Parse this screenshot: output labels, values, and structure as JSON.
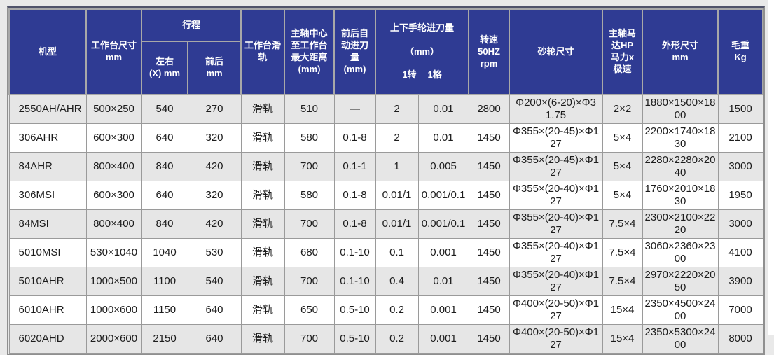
{
  "page": {
    "background": "#e9e9e9",
    "right_strip": "#ffffff"
  },
  "table": {
    "colors": {
      "header_bg": "#2f3b93",
      "header_text": "#ffffff",
      "row_odd_bg": "#e6e6e6",
      "row_even_bg": "#ffffff",
      "grid_line": "#9a9a9a"
    },
    "header": {
      "model": "机型",
      "table_size": "工作台尺寸\nmm",
      "stroke_group": "行程",
      "stroke_lr": "左右\n(X) mm",
      "stroke_fb": "前后\nmm",
      "slide": "工作台滑\n轨",
      "spindle_distance": "主轴中心\n至工作台\n最大距离\n(mm)",
      "auto_feed": "前后自\n动进刀\n量\n(mm)",
      "handwheel_title": "上下手轮进刀量",
      "handwheel_unit": "（mm）",
      "handwheel_rev": "1转",
      "handwheel_grad": "1格",
      "speed": "转速\n50HZ\nrpm",
      "wheel_size": "砂轮尺寸",
      "spindle_motor": "主轴马\n达HP\n马力x\n极速",
      "dimensions": "外形尺寸\nmm",
      "weight": "毛重\nKg"
    },
    "rows": [
      {
        "model": "2550AH/AHR",
        "table_size": "500×250",
        "stroke_lr": "540",
        "stroke_fb": "270",
        "slide": "滑轨",
        "spindle_distance": "510",
        "auto_feed": "—",
        "handwheel_rev": "2",
        "handwheel_grad": "0.01",
        "speed": "2800",
        "wheel_size": "Φ200×(6-20)×Φ31.75",
        "spindle_motor": "2×2",
        "dimensions": "1880×1500×1800",
        "weight": "1500"
      },
      {
        "model": "306AHR",
        "table_size": "600×300",
        "stroke_lr": "640",
        "stroke_fb": "320",
        "slide": "滑轨",
        "spindle_distance": "580",
        "auto_feed": "0.1-8",
        "handwheel_rev": "2",
        "handwheel_grad": "0.01",
        "speed": "1450",
        "wheel_size": "Φ355×(20-45)×Φ127",
        "spindle_motor": "5×4",
        "dimensions": "2200×1740×1830",
        "weight": "2100"
      },
      {
        "model": "84AHR",
        "table_size": "800×400",
        "stroke_lr": "840",
        "stroke_fb": "420",
        "slide": "滑轨",
        "spindle_distance": "700",
        "auto_feed": "0.1-1",
        "handwheel_rev": "1",
        "handwheel_grad": "0.005",
        "speed": "1450",
        "wheel_size": "Φ355×(20-45)×Φ127",
        "spindle_motor": "5×4",
        "dimensions": "2280×2280×2040",
        "weight": "3000"
      },
      {
        "model": "306MSI",
        "table_size": "600×300",
        "stroke_lr": "640",
        "stroke_fb": "320",
        "slide": "滑轨",
        "spindle_distance": "580",
        "auto_feed": "0.1-8",
        "handwheel_rev": "0.01/1",
        "handwheel_grad": "0.001/0.1",
        "speed": "1450",
        "wheel_size": "Φ355×(20-40)×Φ127",
        "spindle_motor": "5×4",
        "dimensions": "1760×2010×1830",
        "weight": "1950"
      },
      {
        "model": "84MSI",
        "table_size": "800×400",
        "stroke_lr": "840",
        "stroke_fb": "420",
        "slide": "滑轨",
        "spindle_distance": "700",
        "auto_feed": "0.1-8",
        "handwheel_rev": "0.01/1",
        "handwheel_grad": "0.001/0.1",
        "speed": "1450",
        "wheel_size": "Φ355×(20-40)×Φ127",
        "spindle_motor": "7.5×4",
        "dimensions": "2300×2100×2220",
        "weight": "3000"
      },
      {
        "model": "5010MSI",
        "table_size": "530×1040",
        "stroke_lr": "1040",
        "stroke_fb": "530",
        "slide": "滑轨",
        "spindle_distance": "680",
        "auto_feed": "0.1-10",
        "handwheel_rev": "0.1",
        "handwheel_grad": "0.001",
        "speed": "1450",
        "wheel_size": "Φ355×(20-40)×Φ127",
        "spindle_motor": "7.5×4",
        "dimensions": "3060×2360×2300",
        "weight": "4100"
      },
      {
        "model": "5010AHR",
        "table_size": "1000×500",
        "stroke_lr": "1100",
        "stroke_fb": "540",
        "slide": "滑轨",
        "spindle_distance": "700",
        "auto_feed": "0.1-10",
        "handwheel_rev": "0.4",
        "handwheel_grad": "0.01",
        "speed": "1450",
        "wheel_size": "Φ355×(20-40)×Φ127",
        "spindle_motor": "7.5×4",
        "dimensions": "2970×2220×2050",
        "weight": "3900"
      },
      {
        "model": "6010AHR",
        "table_size": "1000×600",
        "stroke_lr": "1150",
        "stroke_fb": "640",
        "slide": "滑轨",
        "spindle_distance": "650",
        "auto_feed": "0.5-10",
        "handwheel_rev": "0.2",
        "handwheel_grad": "0.001",
        "speed": "1450",
        "wheel_size": "Φ400×(20-50)×Φ127",
        "spindle_motor": "15×4",
        "dimensions": "2350×4500×2400",
        "weight": "7000"
      },
      {
        "model": "6020AHD",
        "table_size": "2000×600",
        "stroke_lr": "2150",
        "stroke_fb": "640",
        "slide": "滑轨",
        "spindle_distance": "700",
        "auto_feed": "0.5-10",
        "handwheel_rev": "0.2",
        "handwheel_grad": "0.001",
        "speed": "1450",
        "wheel_size": "Φ400×(20-50)×Φ127",
        "spindle_motor": "15×4",
        "dimensions": "2350×5300×2400",
        "weight": "8000"
      }
    ]
  }
}
